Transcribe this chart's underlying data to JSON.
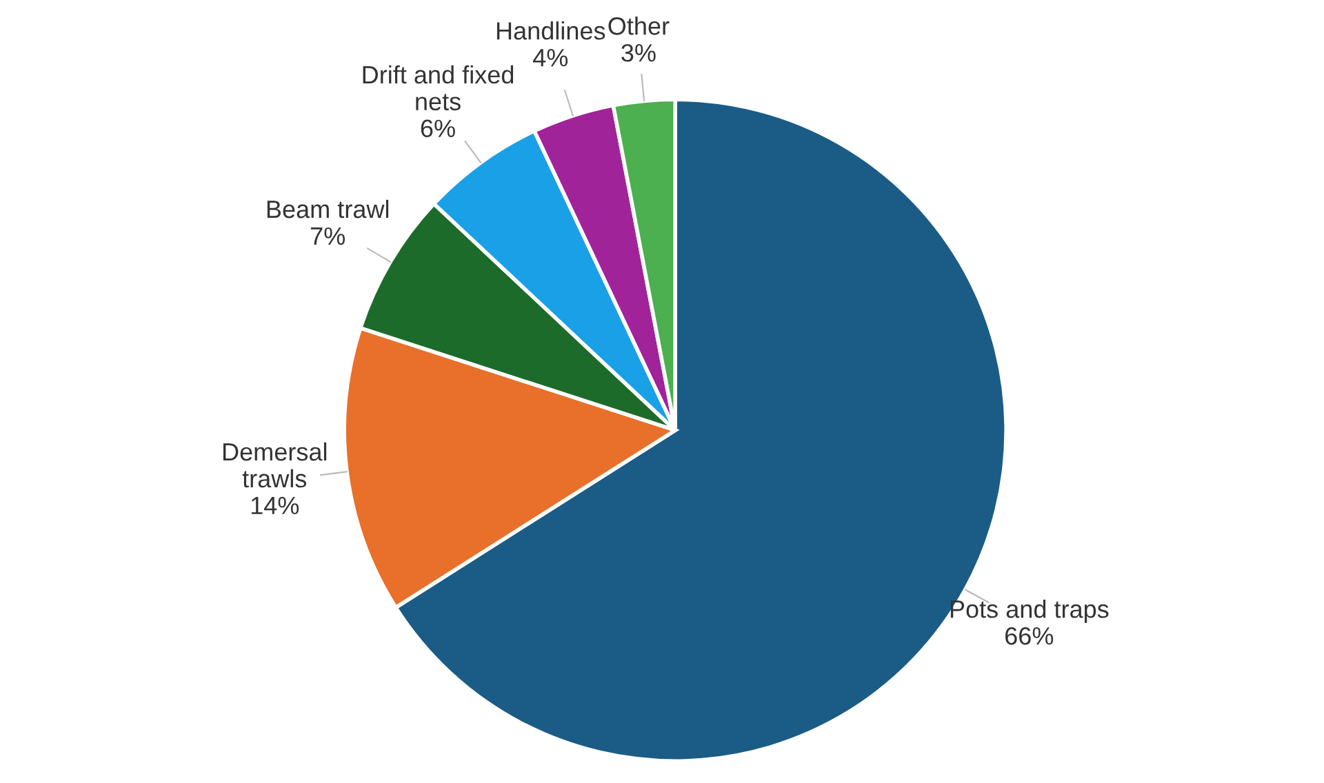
{
  "chart_data": {
    "type": "pie",
    "categories": [
      "Pots and traps",
      "Demersal\ntrawls",
      "Beam trawl",
      "Drift and fixed\nnets",
      "Handlines",
      "Other"
    ],
    "values": [
      66,
      14,
      7,
      6,
      4,
      3
    ],
    "colors": [
      "#1b5c86",
      "#e8702a",
      "#1d6b2a",
      "#1aa0e6",
      "#a1239a",
      "#4caf50"
    ],
    "value_labels": [
      "66%",
      "14%",
      "7%",
      "6%",
      "4%",
      "3%"
    ],
    "legend": false
  }
}
